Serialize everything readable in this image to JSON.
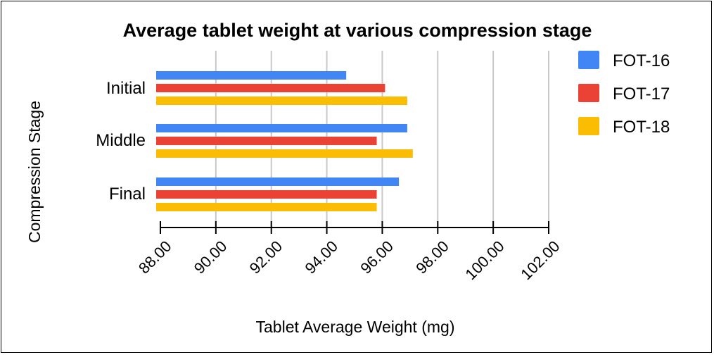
{
  "chart_data": {
    "type": "bar",
    "orientation": "horizontal",
    "title": "Average tablet weight at various compression stage",
    "xlabel": "Tablet Average Weight (mg)",
    "ylabel": "Compression Stage",
    "categories": [
      "Initial",
      "Middle",
      "Final"
    ],
    "series": [
      {
        "name": "FOT-16",
        "color": "#4285f4",
        "values": [
          94.7,
          96.9,
          96.6
        ]
      },
      {
        "name": "FOT-17",
        "color": "#ea4335",
        "values": [
          96.1,
          95.8,
          95.8
        ]
      },
      {
        "name": "FOT-18",
        "color": "#fbbc04",
        "values": [
          96.9,
          97.1,
          95.8
        ]
      }
    ],
    "xlim": [
      88,
      102
    ],
    "xticks": [
      "88.00",
      "90.00",
      "92.00",
      "94.00",
      "96.00",
      "98.00",
      "100.00",
      "102.00"
    ],
    "grid": "vertical",
    "legend": "right"
  }
}
